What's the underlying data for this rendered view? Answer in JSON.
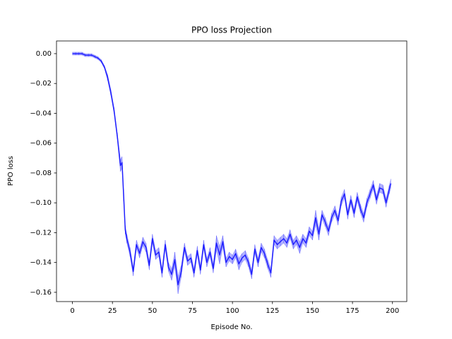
{
  "chart_data": {
    "type": "line",
    "title": "PPO loss Projection",
    "x_label": "Episode No.",
    "y_label": "PPO loss",
    "x": [
      0,
      2,
      4,
      6,
      8,
      10,
      12,
      14,
      16,
      18,
      20,
      22,
      24,
      26,
      28,
      30,
      31,
      32,
      33,
      34,
      36,
      38,
      40,
      42,
      44,
      46,
      48,
      50,
      52,
      54,
      56,
      58,
      60,
      62,
      64,
      66,
      68,
      70,
      72,
      74,
      76,
      78,
      80,
      82,
      84,
      86,
      88,
      90,
      92,
      94,
      96,
      98,
      100,
      102,
      104,
      106,
      108,
      110,
      112,
      114,
      116,
      118,
      120,
      122,
      124,
      126,
      128,
      130,
      132,
      134,
      136,
      138,
      140,
      142,
      144,
      146,
      148,
      150,
      152,
      154,
      156,
      158,
      160,
      162,
      164,
      166,
      168,
      170,
      172,
      174,
      176,
      178,
      180,
      182,
      184,
      186,
      188,
      190,
      192,
      194,
      196,
      198,
      199
    ],
    "series": [
      {
        "color": "blue",
        "values": [
          0.0,
          0.0,
          0.0,
          0.0,
          -0.001,
          -0.001,
          -0.001,
          -0.002,
          -0.003,
          -0.005,
          -0.009,
          -0.016,
          -0.026,
          -0.038,
          -0.055,
          -0.075,
          -0.073,
          -0.095,
          -0.118,
          -0.124,
          -0.133,
          -0.146,
          -0.128,
          -0.134,
          -0.126,
          -0.13,
          -0.142,
          -0.124,
          -0.135,
          -0.133,
          -0.147,
          -0.128,
          -0.143,
          -0.148,
          -0.138,
          -0.155,
          -0.146,
          -0.13,
          -0.139,
          -0.137,
          -0.147,
          -0.132,
          -0.145,
          -0.128,
          -0.14,
          -0.133,
          -0.144,
          -0.127,
          -0.135,
          -0.126,
          -0.14,
          -0.136,
          -0.138,
          -0.134,
          -0.141,
          -0.137,
          -0.135,
          -0.14,
          -0.148,
          -0.131,
          -0.14,
          -0.13,
          -0.134,
          -0.141,
          -0.147,
          -0.125,
          -0.128,
          -0.126,
          -0.124,
          -0.127,
          -0.121,
          -0.128,
          -0.125,
          -0.13,
          -0.124,
          -0.127,
          -0.119,
          -0.122,
          -0.11,
          -0.121,
          -0.108,
          -0.113,
          -0.119,
          -0.11,
          -0.105,
          -0.112,
          -0.099,
          -0.094,
          -0.108,
          -0.098,
          -0.107,
          -0.096,
          -0.104,
          -0.11,
          -0.1,
          -0.094,
          -0.088,
          -0.098,
          -0.09,
          -0.091,
          -0.1,
          -0.091,
          -0.087
        ],
        "errors": [
          0.001,
          0.001,
          0.001,
          0.001,
          0.001,
          0.001,
          0.001,
          0.001,
          0.001,
          0.001,
          0.001,
          0.002,
          0.002,
          0.002,
          0.002,
          0.004,
          0.004,
          0.004,
          0.003,
          0.003,
          0.003,
          0.003,
          0.003,
          0.003,
          0.003,
          0.003,
          0.003,
          0.003,
          0.003,
          0.003,
          0.003,
          0.003,
          0.003,
          0.004,
          0.005,
          0.006,
          0.004,
          0.003,
          0.003,
          0.003,
          0.003,
          0.003,
          0.003,
          0.003,
          0.003,
          0.003,
          0.003,
          0.005,
          0.006,
          0.004,
          0.003,
          0.003,
          0.003,
          0.003,
          0.004,
          0.003,
          0.003,
          0.003,
          0.003,
          0.003,
          0.003,
          0.003,
          0.003,
          0.003,
          0.003,
          0.003,
          0.003,
          0.003,
          0.003,
          0.003,
          0.003,
          0.003,
          0.003,
          0.004,
          0.003,
          0.003,
          0.003,
          0.003,
          0.005,
          0.004,
          0.003,
          0.003,
          0.003,
          0.003,
          0.003,
          0.003,
          0.003,
          0.003,
          0.003,
          0.003,
          0.003,
          0.003,
          0.003,
          0.003,
          0.003,
          0.003,
          0.003,
          0.003,
          0.003,
          0.003,
          0.003,
          0.003,
          0.003
        ]
      }
    ],
    "xlim": [
      -9.95,
      208.95
    ],
    "ylim": [
      -0.1662,
      0.0085
    ],
    "xticks": [
      0,
      25,
      50,
      75,
      100,
      125,
      150,
      175,
      200
    ],
    "yticks": [
      {
        "value": 0,
        "label": "0.00"
      },
      {
        "value": -0.02,
        "label": "−0.02"
      },
      {
        "value": -0.04,
        "label": "−0.04"
      },
      {
        "value": -0.06,
        "label": "−0.06"
      },
      {
        "value": -0.08,
        "label": "−0.08"
      },
      {
        "value": -0.1,
        "label": "−0.10"
      },
      {
        "value": -0.12,
        "label": "−0.12"
      },
      {
        "value": -0.14,
        "label": "−0.14"
      },
      {
        "value": -0.16,
        "label": "−0.16"
      }
    ],
    "grid": false
  }
}
